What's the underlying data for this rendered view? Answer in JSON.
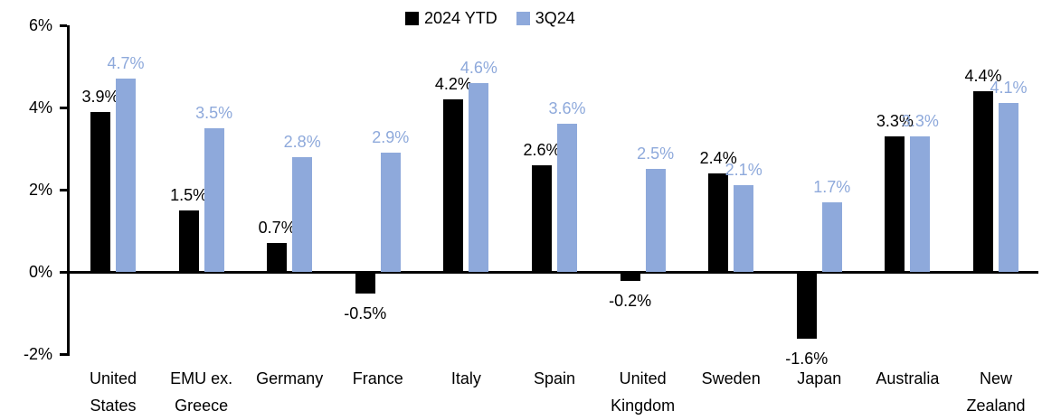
{
  "chart_data": {
    "type": "bar",
    "title": "",
    "xlabel": "",
    "ylabel": "",
    "grid": false,
    "legend_position": "top-center",
    "background_color": "#ffffff",
    "categories": [
      "United\nStates",
      "EMU ex.\nGreece",
      "Germany",
      "France",
      "Italy",
      "Spain",
      "United\nKingdom",
      "Sweden",
      "Japan",
      "Australia",
      "New\nZealand"
    ],
    "series": [
      {
        "name": "2024 YTD",
        "color": "#000000",
        "values": [
          3.9,
          1.5,
          0.7,
          -0.5,
          4.2,
          2.6,
          -0.2,
          2.4,
          -1.6,
          3.3,
          4.4
        ],
        "labels": [
          "3.9%",
          "1.5%",
          "0.7%",
          "-0.5%",
          "4.2%",
          "2.6%",
          "-0.2%",
          "2.4%",
          "-1.6%",
          "3.3%",
          "4.4%"
        ]
      },
      {
        "name": "3Q24",
        "color": "#8EA9DB",
        "values": [
          4.7,
          3.5,
          2.8,
          2.9,
          4.6,
          3.6,
          2.5,
          2.1,
          1.7,
          3.3,
          4.1
        ],
        "labels": [
          "4.7%",
          "3.5%",
          "2.8%",
          "2.9%",
          "4.6%",
          "3.6%",
          "2.5%",
          "2.1%",
          "1.7%",
          "3.3%",
          "4.1%"
        ]
      }
    ],
    "y_axis": {
      "min": -2,
      "max": 6,
      "ticks": [
        {
          "value": 6,
          "label": "6%"
        },
        {
          "value": 4,
          "label": "4%"
        },
        {
          "value": 2,
          "label": "2%"
        },
        {
          "value": 0,
          "label": "0%"
        },
        {
          "value": -2,
          "label": "-2%"
        }
      ]
    }
  }
}
